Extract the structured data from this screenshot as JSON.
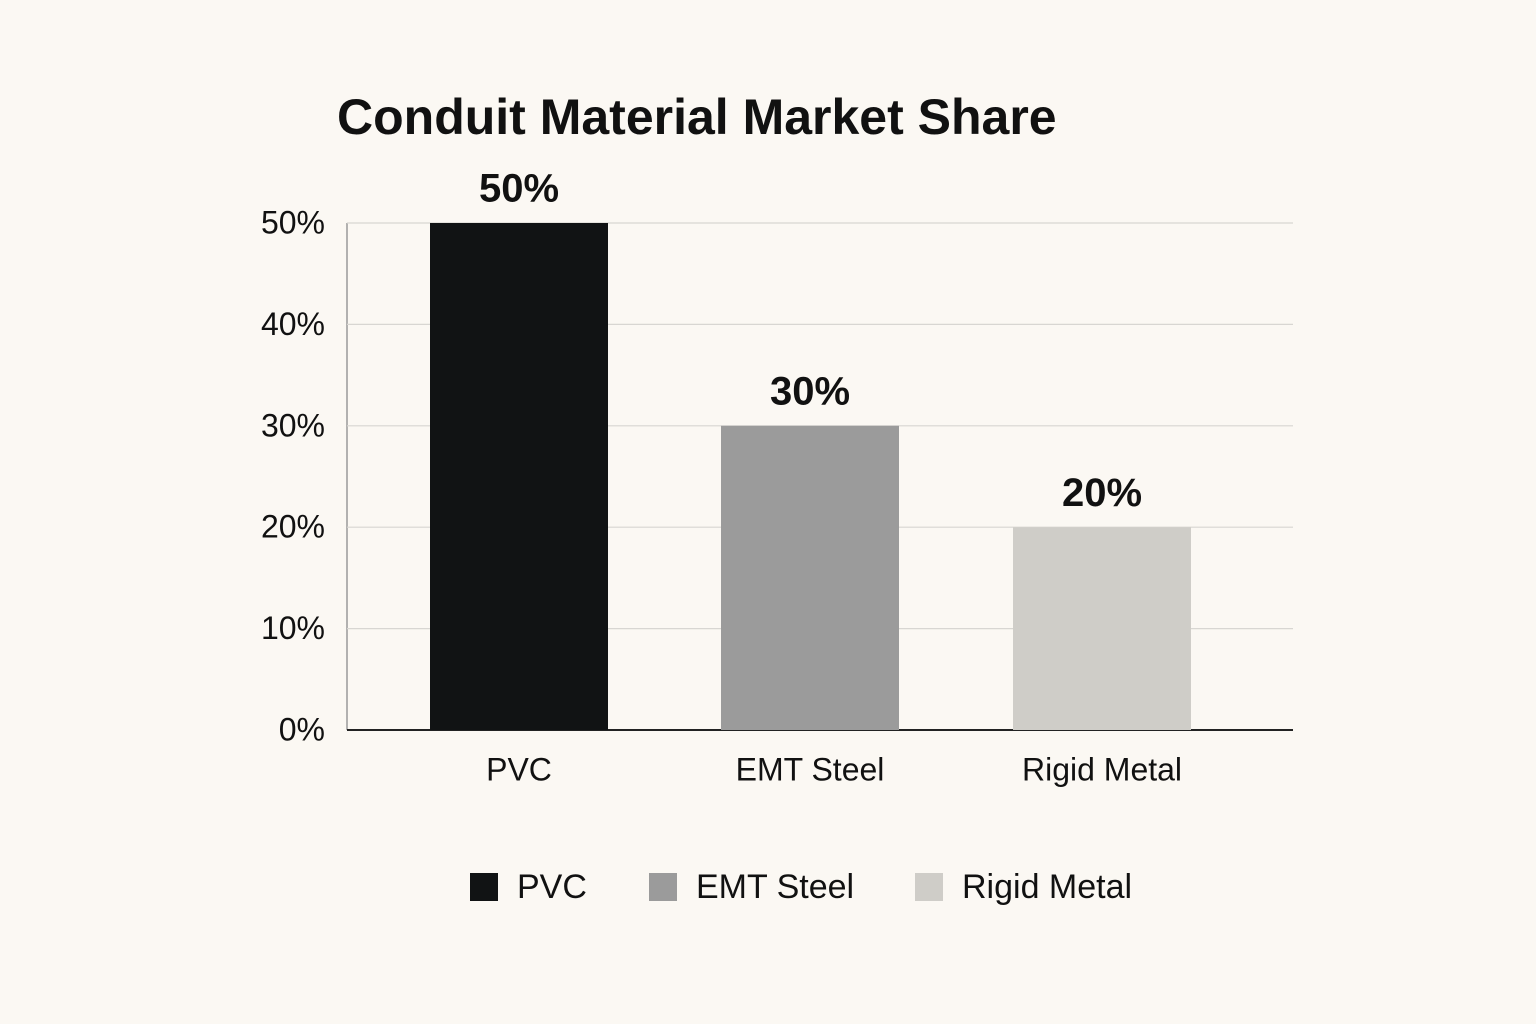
{
  "chart_data": {
    "type": "bar",
    "title": "Conduit Material Market Share",
    "categories": [
      "PVC",
      "EMT Steel",
      "Rigid Metal"
    ],
    "values": [
      50,
      30,
      20
    ],
    "value_labels": [
      "50%",
      "30%",
      "20%"
    ],
    "colors": [
      "#111314",
      "#9b9b9b",
      "#cfcdc8"
    ],
    "ylim": [
      0,
      50
    ],
    "yticks": [
      {
        "value": 0,
        "label": "0%"
      },
      {
        "value": 10,
        "label": "10%"
      },
      {
        "value": 20,
        "label": "20%"
      },
      {
        "value": 30,
        "label": "30%"
      },
      {
        "value": 40,
        "label": "40%"
      },
      {
        "value": 50,
        "label": "50%"
      }
    ],
    "grid": true,
    "legend": "bottom"
  }
}
